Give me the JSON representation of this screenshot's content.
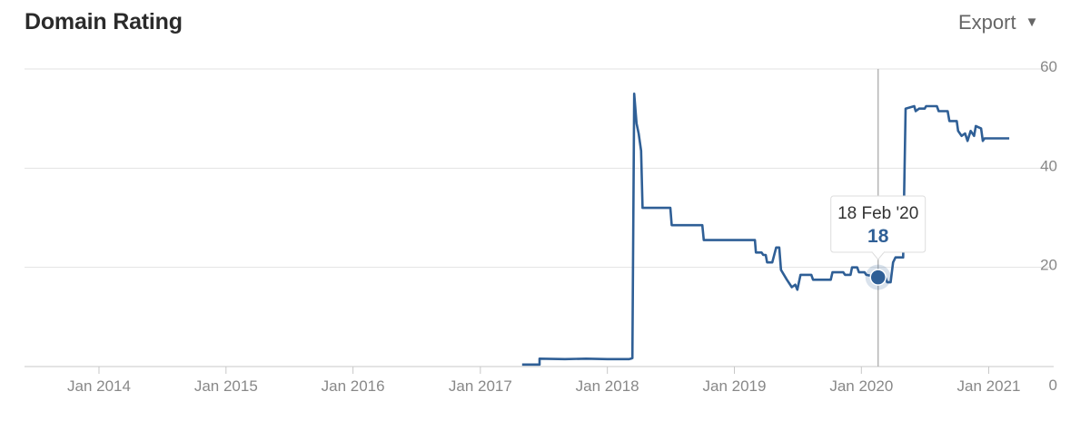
{
  "header": {
    "title": "Domain Rating",
    "export_label": "Export",
    "export_icon": "caret-down-icon"
  },
  "chart_data": {
    "type": "line",
    "title": "Domain Rating",
    "xlabel": "",
    "ylabel": "",
    "x_ticks": [
      "Jan 2014",
      "Jan 2015",
      "Jan 2016",
      "Jan 2017",
      "Jan 2018",
      "Jan 2019",
      "Jan 2020",
      "Jan 2021"
    ],
    "y_ticks": [
      0,
      20,
      40,
      60
    ],
    "ylim": [
      0,
      60
    ],
    "xlim": [
      "2013-06-01",
      "2021-04-01"
    ],
    "y_axis_position": "right",
    "grid": true,
    "line_color": "#2f5f96",
    "series": [
      {
        "values": [
          [
            "2017-05-01",
            0.4
          ],
          [
            "2017-06-20",
            0.4
          ],
          [
            "2017-06-20",
            1.6
          ],
          [
            "2017-09-01",
            1.5
          ],
          [
            "2017-11-01",
            1.6
          ],
          [
            "2018-01-01",
            1.5
          ],
          [
            "2018-03-05",
            1.5
          ],
          [
            "2018-03-10",
            1.6
          ],
          [
            "2018-03-14",
            1.7
          ],
          [
            "2018-03-19",
            55.0
          ],
          [
            "2018-03-26",
            49.0
          ],
          [
            "2018-04-01",
            47.0
          ],
          [
            "2018-04-08",
            43.5
          ],
          [
            "2018-04-12",
            32.0
          ],
          [
            "2018-07-01",
            32.0
          ],
          [
            "2018-07-05",
            28.5
          ],
          [
            "2018-10-01",
            28.5
          ],
          [
            "2018-10-05",
            25.5
          ],
          [
            "2019-03-01",
            25.5
          ],
          [
            "2019-03-04",
            23.0
          ],
          [
            "2019-03-20",
            23.0
          ],
          [
            "2019-03-25",
            22.5
          ],
          [
            "2019-04-01",
            22.5
          ],
          [
            "2019-04-05",
            21.0
          ],
          [
            "2019-04-20",
            21.0
          ],
          [
            "2019-05-01",
            24.0
          ],
          [
            "2019-05-10",
            24.0
          ],
          [
            "2019-05-15",
            19.5
          ],
          [
            "2019-06-01",
            17.5
          ],
          [
            "2019-06-15",
            16.0
          ],
          [
            "2019-06-25",
            16.5
          ],
          [
            "2019-07-01",
            15.5
          ],
          [
            "2019-07-10",
            18.5
          ],
          [
            "2019-08-10",
            18.5
          ],
          [
            "2019-08-15",
            17.5
          ],
          [
            "2019-10-05",
            17.5
          ],
          [
            "2019-10-10",
            19.0
          ],
          [
            "2019-11-10",
            19.0
          ],
          [
            "2019-11-15",
            18.5
          ],
          [
            "2019-12-01",
            18.5
          ],
          [
            "2019-12-05",
            20.0
          ],
          [
            "2019-12-20",
            20.0
          ],
          [
            "2019-12-25",
            19.0
          ],
          [
            "2020-01-10",
            19.0
          ],
          [
            "2020-01-15",
            18.5
          ],
          [
            "2020-02-18",
            18.0
          ],
          [
            "2020-03-10",
            18.0
          ],
          [
            "2020-03-15",
            17.0
          ],
          [
            "2020-03-25",
            17.0
          ],
          [
            "2020-04-01",
            21.0
          ],
          [
            "2020-04-08",
            22.0
          ],
          [
            "2020-04-30",
            22.0
          ],
          [
            "2020-05-03",
            35.0
          ],
          [
            "2020-05-07",
            52.0
          ],
          [
            "2020-06-01",
            52.5
          ],
          [
            "2020-06-05",
            51.5
          ],
          [
            "2020-06-15",
            52.0
          ],
          [
            "2020-07-01",
            52.0
          ],
          [
            "2020-07-05",
            52.5
          ],
          [
            "2020-08-05",
            52.5
          ],
          [
            "2020-08-10",
            51.5
          ],
          [
            "2020-09-05",
            51.5
          ],
          [
            "2020-09-10",
            49.5
          ],
          [
            "2020-10-01",
            49.5
          ],
          [
            "2020-10-05",
            47.5
          ],
          [
            "2020-10-15",
            46.5
          ],
          [
            "2020-10-25",
            47.0
          ],
          [
            "2020-11-01",
            45.5
          ],
          [
            "2020-11-10",
            47.5
          ],
          [
            "2020-11-20",
            46.5
          ],
          [
            "2020-11-25",
            48.5
          ],
          [
            "2020-12-10",
            48.0
          ],
          [
            "2020-12-15",
            45.5
          ],
          [
            "2020-12-20",
            46.0
          ],
          [
            "2021-03-01",
            46.0
          ]
        ]
      }
    ],
    "tooltip": {
      "date": "18 Feb '20",
      "x": "2020-02-18",
      "value": 18
    }
  }
}
